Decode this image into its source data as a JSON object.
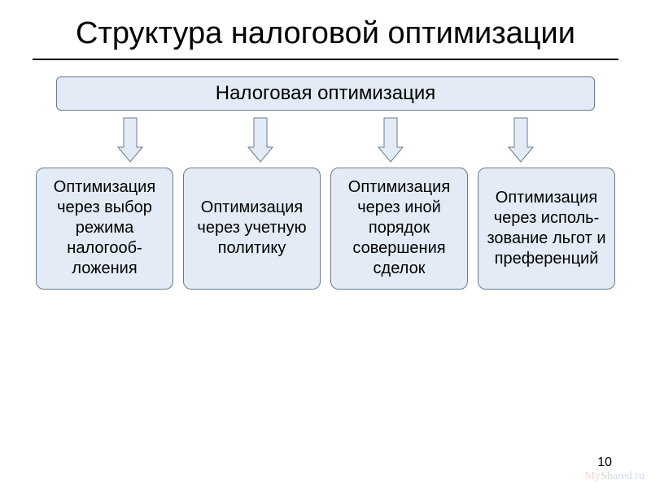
{
  "title": "Структура налоговой оптимизации",
  "root": {
    "label": "Налоговая оптимизация"
  },
  "arrows": {
    "count": 4,
    "shaft_color": "#e3ecf6",
    "border_color": "#6a7a8a",
    "shaft_width": 16,
    "shaft_height": 36,
    "head_width": 30,
    "head_height": 18
  },
  "leaves": [
    {
      "label": "Оптимизация через выбор режима налогооб- ложения"
    },
    {
      "label": "Оптимизация через учетную политику"
    },
    {
      "label": "Оптимизация через иной порядок совершения сделок"
    },
    {
      "label": "Оптимизация через исполь- зование льгот и преференций"
    }
  ],
  "style": {
    "background": "#ffffff",
    "box_fill": "#e3ecf6",
    "box_border": "#6a7a8a",
    "title_fontsize": 38,
    "root_fontsize": 24,
    "leaf_fontsize": 20,
    "leaf_radius": 10,
    "root_radius": 6
  },
  "page_number": "10",
  "watermark": {
    "my": "My",
    "sh": "Sh",
    "ru": "ared.ru"
  }
}
